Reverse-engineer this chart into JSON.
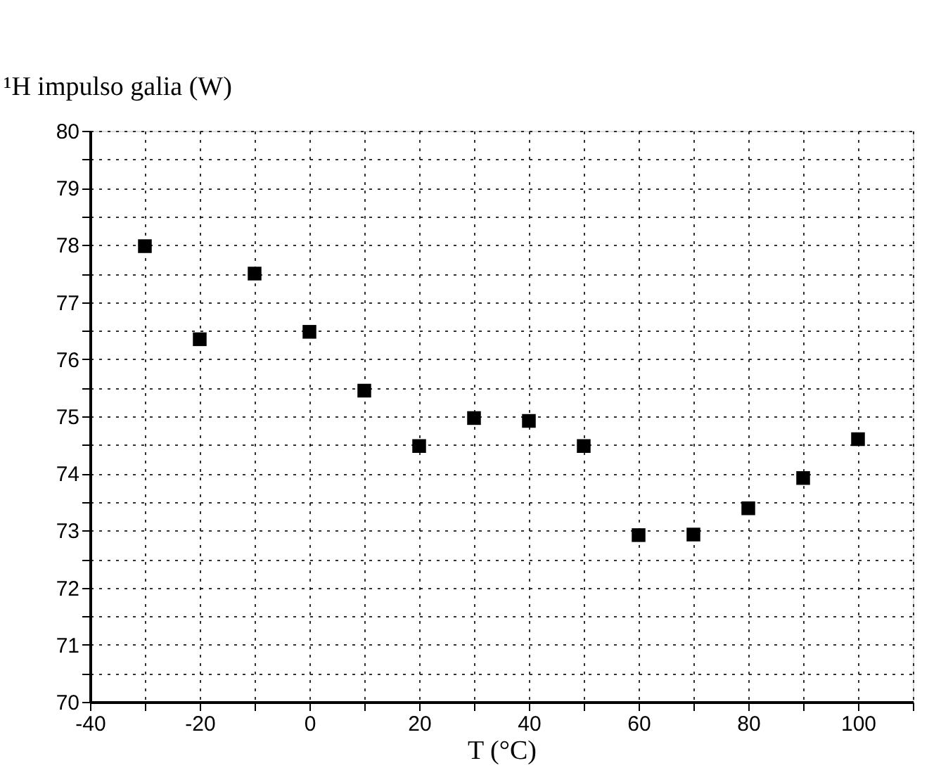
{
  "chart_data": {
    "type": "scatter",
    "xlabel": "T (°C)",
    "ylabel": "¹H impulso galia (W)",
    "x": [
      -30,
      -20,
      -10,
      0,
      10,
      20,
      30,
      40,
      50,
      60,
      70,
      80,
      90,
      100
    ],
    "series": [
      {
        "color": "#000000",
        "values": [
          77.98,
          76.35,
          77.5,
          76.48,
          75.45,
          74.48,
          74.97,
          74.92,
          74.48,
          72.92,
          72.93,
          73.39,
          73.92,
          74.6
        ]
      }
    ],
    "xlim": [
      -40,
      110
    ],
    "xticks": [
      -40,
      {
        "value": -30,
        "label": null
      },
      -20,
      {
        "value": -10,
        "label": null
      },
      0,
      {
        "value": 10,
        "label": null
      },
      20,
      {
        "value": 30,
        "label": null
      },
      40,
      {
        "value": 50,
        "label": null
      },
      60,
      {
        "value": 70,
        "label": null
      },
      80,
      {
        "value": 90,
        "label": null
      },
      100,
      {
        "value": 110,
        "label": null
      }
    ],
    "ylim": [
      70,
      80
    ],
    "yticks": [
      70,
      {
        "value": 70.5,
        "label": null
      },
      71,
      {
        "value": 71.5,
        "label": null
      },
      72,
      {
        "value": 72.5,
        "label": null
      },
      73,
      {
        "value": 73.5,
        "label": null
      },
      74,
      {
        "value": 74.5,
        "label": null
      },
      75,
      {
        "value": 75.5,
        "label": null
      },
      76,
      {
        "value": 76.5,
        "label": null
      },
      77,
      {
        "value": 77.5,
        "label": null
      },
      78,
      {
        "value": 78.5,
        "label": null
      },
      79,
      {
        "value": 79.5,
        "label": null
      },
      80
    ],
    "grid": true,
    "marker": "square"
  }
}
